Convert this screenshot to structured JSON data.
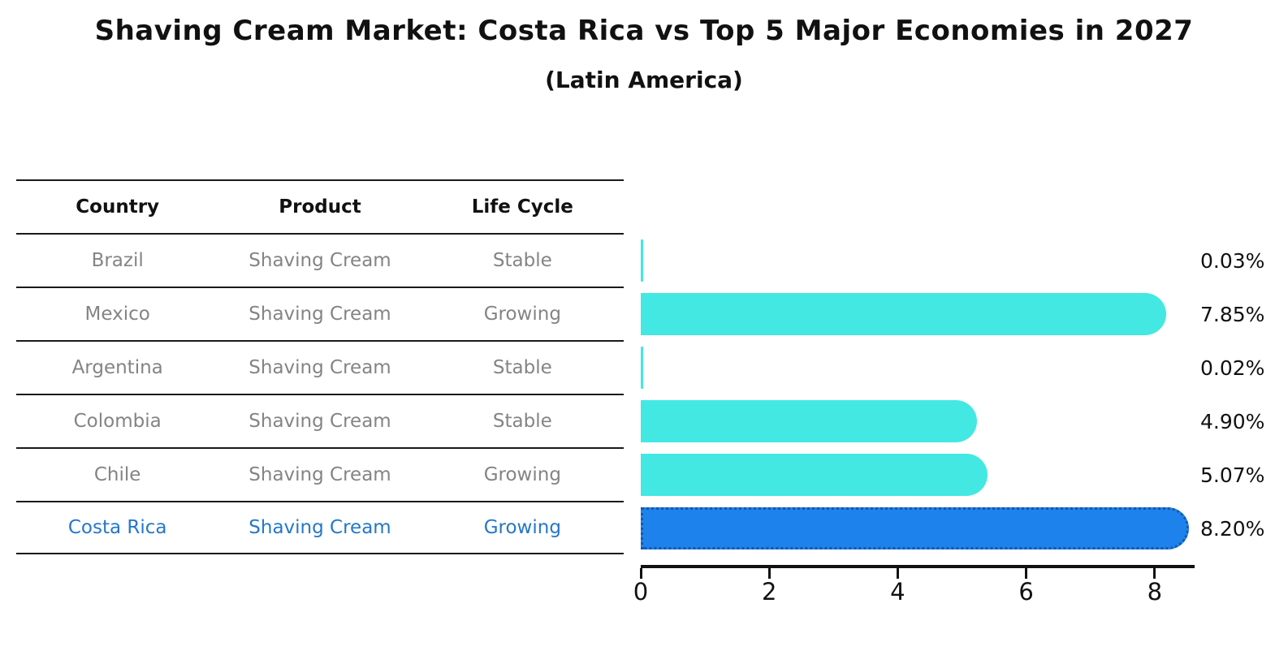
{
  "title": "Shaving Cream Market: Costa Rica vs Top 5 Major Economies in 2027",
  "subtitle": "(Latin America)",
  "table": {
    "headers": [
      "Country",
      "Product",
      "Life Cycle"
    ],
    "rows": [
      {
        "country": "Brazil",
        "product": "Shaving Cream",
        "life_cycle": "Stable"
      },
      {
        "country": "Mexico",
        "product": "Shaving Cream",
        "life_cycle": "Growing"
      },
      {
        "country": "Argentina",
        "product": "Shaving Cream",
        "life_cycle": "Stable"
      },
      {
        "country": "Colombia",
        "product": "Shaving Cream",
        "life_cycle": "Stable"
      },
      {
        "country": "Chile",
        "product": "Shaving Cream",
        "life_cycle": "Growing"
      },
      {
        "country": "Costa Rica",
        "product": "Shaving Cream",
        "life_cycle": "Growing"
      }
    ]
  },
  "chart_data": {
    "type": "bar",
    "orientation": "horizontal",
    "title": "Shaving Cream Market: Costa Rica vs Top 5 Major Economies in 2027",
    "subtitle": "(Latin America)",
    "categories": [
      "Brazil",
      "Mexico",
      "Argentina",
      "Colombia",
      "Chile",
      "Costa Rica"
    ],
    "values": [
      0.03,
      7.85,
      0.02,
      4.9,
      5.07,
      8.2
    ],
    "value_labels": [
      "0.03%",
      "7.85%",
      "0.02%",
      "4.90%",
      "5.07%",
      "8.20%"
    ],
    "unit": "%",
    "xlabel": "",
    "ylabel": "",
    "xlim": [
      0,
      8.62
    ],
    "x_ticks": [
      0,
      2,
      4,
      6,
      8
    ],
    "x_tick_labels": [
      "0",
      "2",
      "4",
      "6",
      "8"
    ],
    "grid": false,
    "legend": false,
    "highlight_index": 5,
    "bar_color": "#43e8e2",
    "highlight_color": "#1e82ec",
    "highlight_border_color": "#1559a8",
    "highlight_border_style": "dotted"
  },
  "colors": {
    "background": "#ffffff",
    "title_text": "#111111",
    "table_header_text": "#111111",
    "table_body_text": "#848484",
    "highlight_text": "#2478c8",
    "axis": "#111111"
  }
}
